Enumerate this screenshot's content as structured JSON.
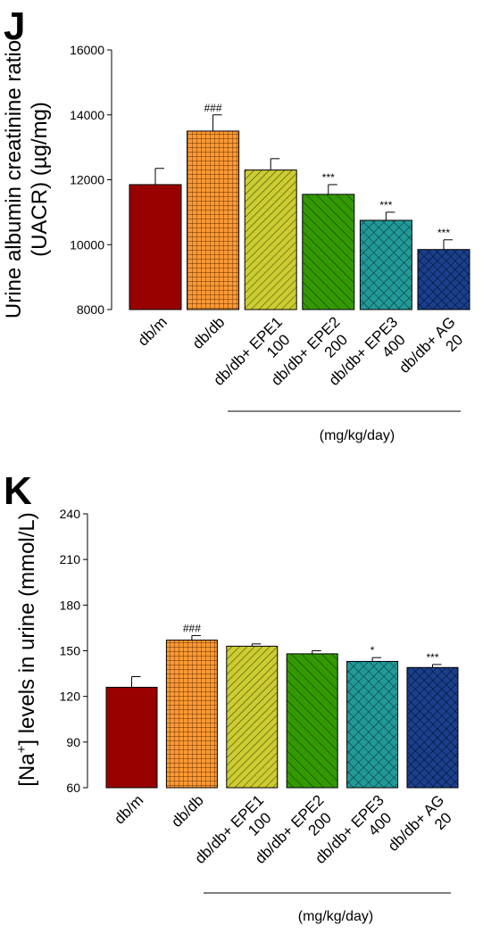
{
  "chart_data": [
    {
      "type": "bar",
      "panel_label": "J",
      "ylabel_line1": "Urine albumin creatinine ratio",
      "ylabel_line2": "(UACR) (µg/mg)",
      "ylim": [
        8000,
        16000
      ],
      "yticks": [
        8000,
        10000,
        12000,
        14000,
        16000
      ],
      "grid": false,
      "categories": [
        {
          "line1": "db/m",
          "line2": ""
        },
        {
          "line1": "db/db",
          "line2": ""
        },
        {
          "line1": "db/db+ EPE1",
          "line2": "100"
        },
        {
          "line1": "db/db+ EPE2",
          "line2": "200"
        },
        {
          "line1": "db/db+ EPE3",
          "line2": "400"
        },
        {
          "line1": "db/db+ AG",
          "line2": "20"
        }
      ],
      "values": [
        11850,
        13500,
        12300,
        11550,
        10750,
        9850
      ],
      "errors": [
        500,
        500,
        350,
        300,
        250,
        300
      ],
      "annotations": [
        "",
        "###",
        "",
        "***",
        "***",
        "***"
      ],
      "bracket_label": "(mg/kg/day)"
    },
    {
      "type": "bar",
      "panel_label": "K",
      "ylabel_parts": [
        "[Na",
        "+",
        "] levels in urine (mmol/L)"
      ],
      "ylim": [
        60,
        240
      ],
      "yticks": [
        60,
        90,
        120,
        150,
        180,
        210,
        240
      ],
      "grid": false,
      "categories": [
        {
          "line1": "db/m",
          "line2": ""
        },
        {
          "line1": "db/db",
          "line2": ""
        },
        {
          "line1": "db/db+  EPE1",
          "line2": "100"
        },
        {
          "line1": "db/db+  EPE2",
          "line2": "200"
        },
        {
          "line1": "db/db+  EPE3",
          "line2": "400"
        },
        {
          "line1": "db/db+ AG",
          "line2": "20"
        }
      ],
      "values": [
        126,
        157,
        153,
        148,
        143,
        139
      ],
      "errors": [
        7,
        3,
        1.5,
        2,
        2.5,
        2
      ],
      "annotations": [
        "",
        "###",
        "",
        "",
        "*",
        "***"
      ],
      "bracket_label": "(mg/kg/day)"
    }
  ],
  "colors": [
    "#990000",
    "#ff9933",
    "#cccc33",
    "#339900",
    "#229999",
    "#1a3f8c"
  ],
  "patterns": [
    "solid",
    "grid",
    "diag-right",
    "diag-left",
    "crosshatch",
    "crosshatch-dense"
  ]
}
